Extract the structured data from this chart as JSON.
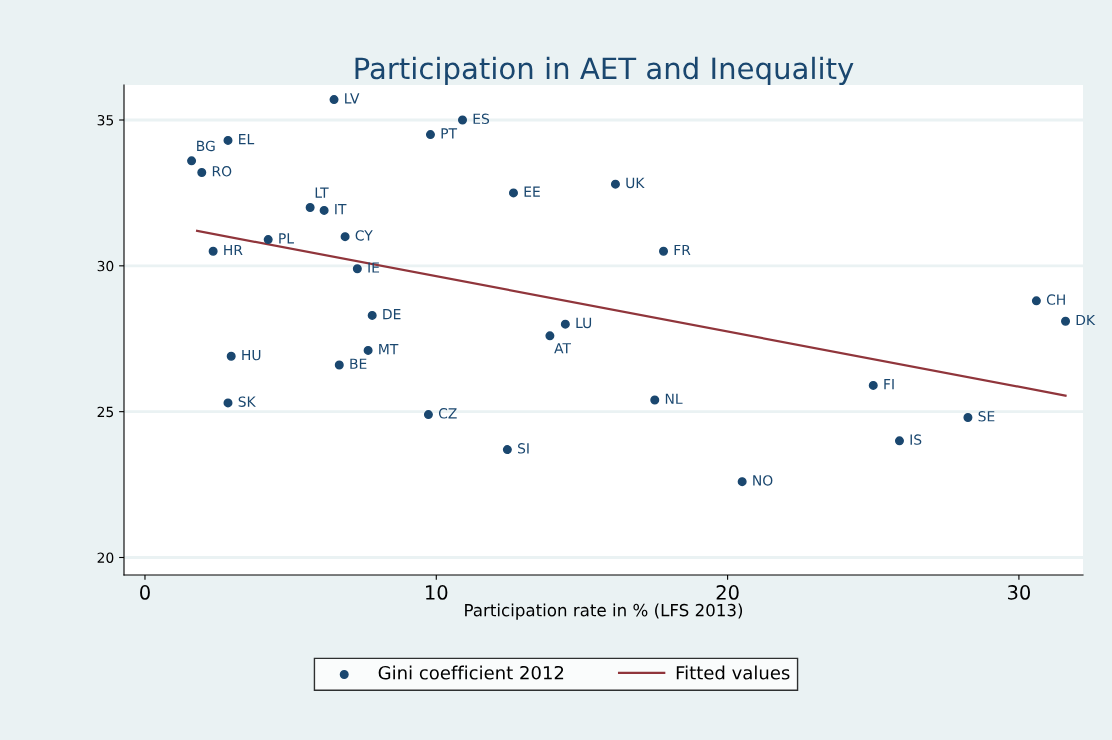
{
  "chart_data": {
    "type": "scatter",
    "title": "Participation in AET and Inequality",
    "xlabel": "Participation rate in % (LFS 2013)",
    "xlim": [
      -0.72,
      32.2
    ],
    "xticks": [
      0,
      10,
      20,
      30
    ],
    "ylim": [
      19.4,
      36.2
    ],
    "yticks": [
      20,
      25,
      30,
      35
    ],
    "grid": "y",
    "legend": "bottom",
    "series": [
      {
        "name": "Gini coefficient 2012",
        "marker": "circle",
        "color": "#1a476f",
        "x": [
          6.49,
          10.9,
          9.8,
          2.85,
          1.6,
          1.95,
          12.65,
          16.15,
          5.67,
          6.15,
          6.87,
          4.23,
          2.34,
          17.8,
          7.29,
          7.8,
          14.43,
          13.9,
          7.66,
          6.67,
          2.96,
          2.85,
          9.73,
          17.5,
          12.44,
          20.5,
          25.0,
          25.9,
          28.25,
          30.6,
          31.6
        ],
        "values": [
          35.7,
          35.0,
          34.5,
          34.3,
          33.6,
          33.2,
          32.5,
          32.8,
          32.0,
          31.9,
          31.0,
          30.9,
          30.5,
          30.5,
          29.9,
          28.3,
          28.0,
          27.6,
          27.1,
          26.6,
          26.9,
          25.3,
          24.9,
          25.4,
          23.7,
          22.6,
          25.9,
          24.0,
          24.8,
          28.8,
          28.1
        ]
      },
      {
        "name": "Fitted values",
        "type": "line",
        "marker": "none",
        "color": "#90353b",
        "line_style": "solid",
        "x": [
          1.79,
          31.6
        ],
        "values": [
          31.2,
          25.55
        ]
      }
    ],
    "annotations": [
      {
        "text": "LV",
        "x": 6.49,
        "y": 35.7
      },
      {
        "text": "ES",
        "x": 10.9,
        "y": 35.0
      },
      {
        "text": "PT",
        "x": 9.8,
        "y": 34.5
      },
      {
        "text": "EL",
        "x": 2.85,
        "y": 34.3
      },
      {
        "text": "BG",
        "x": 1.6,
        "y": 33.6
      },
      {
        "text": "RO",
        "x": 1.95,
        "y": 33.2
      },
      {
        "text": "EE",
        "x": 12.65,
        "y": 32.5
      },
      {
        "text": "UK",
        "x": 16.15,
        "y": 32.8
      },
      {
        "text": "LT",
        "x": 5.67,
        "y": 32.0
      },
      {
        "text": "IT",
        "x": 6.15,
        "y": 31.9
      },
      {
        "text": "CY",
        "x": 6.87,
        "y": 31.0
      },
      {
        "text": "PL",
        "x": 4.23,
        "y": 30.9
      },
      {
        "text": "HR",
        "x": 2.34,
        "y": 30.5
      },
      {
        "text": "FR",
        "x": 17.8,
        "y": 30.5
      },
      {
        "text": "IE",
        "x": 7.29,
        "y": 29.9
      },
      {
        "text": "DE",
        "x": 7.8,
        "y": 28.3
      },
      {
        "text": "LU",
        "x": 14.43,
        "y": 28.0
      },
      {
        "text": "AT",
        "x": 13.9,
        "y": 27.6
      },
      {
        "text": "MT",
        "x": 7.66,
        "y": 27.1
      },
      {
        "text": "BE",
        "x": 6.67,
        "y": 26.6
      },
      {
        "text": "HU",
        "x": 2.96,
        "y": 26.9
      },
      {
        "text": "SK",
        "x": 2.85,
        "y": 25.3
      },
      {
        "text": "CZ",
        "x": 9.73,
        "y": 24.9
      },
      {
        "text": "NL",
        "x": 17.5,
        "y": 25.4
      },
      {
        "text": "SI",
        "x": 12.44,
        "y": 23.7
      },
      {
        "text": "NO",
        "x": 20.5,
        "y": 22.6
      },
      {
        "text": "FI",
        "x": 25.0,
        "y": 25.9
      },
      {
        "text": "IS",
        "x": 25.9,
        "y": 24.0
      },
      {
        "text": "SE",
        "x": 28.25,
        "y": 24.8
      },
      {
        "text": "CH",
        "x": 30.6,
        "y": 28.8
      },
      {
        "text": "DK",
        "x": 31.6,
        "y": 28.1
      }
    ]
  }
}
